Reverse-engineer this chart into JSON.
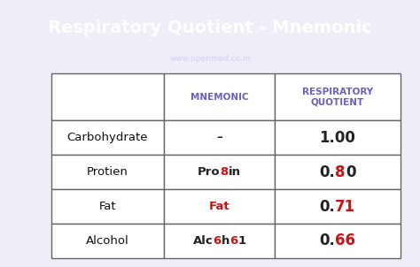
{
  "title": "Respiratory Quotient - Mnemonic",
  "subtitle": "www.openmed.co.in",
  "header_bg": "#7b6fd4",
  "header_text_color": "#ffffff",
  "subtitle_color": "#d4d0f5",
  "bg_color": "#eeedf8",
  "table_bg": "#ffffff",
  "border_color": "#666666",
  "col_header_color": "#6b5fc7",
  "col_headers": [
    "MNEMONIC",
    "RESPIRATORY\nQUOTIENT"
  ],
  "rows": [
    {
      "label": "Carbohydrate",
      "mnemonic_parts": [
        [
          "–",
          "#222222"
        ]
      ],
      "rq_parts": [
        [
          "1.00",
          "#222222"
        ]
      ]
    },
    {
      "label": "Protien",
      "mnemonic_parts": [
        [
          "Pro",
          "#222222"
        ],
        [
          "8",
          "#cc1111"
        ],
        [
          "in",
          "#222222"
        ]
      ],
      "rq_parts": [
        [
          "0.",
          "#222222"
        ],
        [
          "8",
          "#cc1111"
        ],
        [
          "0",
          "#222222"
        ]
      ]
    },
    {
      "label": "Fat",
      "mnemonic_parts": [
        [
          "Fat",
          "#cc1111"
        ]
      ],
      "rq_parts": [
        [
          "0.",
          "#222222"
        ],
        [
          "71",
          "#cc1111"
        ]
      ]
    },
    {
      "label": "Alcohol",
      "mnemonic_parts": [
        [
          "Alc",
          "#222222"
        ],
        [
          "6",
          "#cc1111"
        ],
        [
          "h",
          "#222222"
        ],
        [
          "6",
          "#cc1111"
        ],
        [
          "1",
          "#222222"
        ]
      ],
      "rq_parts": [
        [
          "0.",
          "#222222"
        ],
        [
          "66",
          "#cc1111"
        ]
      ]
    }
  ],
  "label_color": "#111111",
  "title_fontsize": 14,
  "subtitle_fontsize": 6.5,
  "cell_fontsize": 9.5,
  "rq_fontsize": 12,
  "header_fontsize": 7.5
}
